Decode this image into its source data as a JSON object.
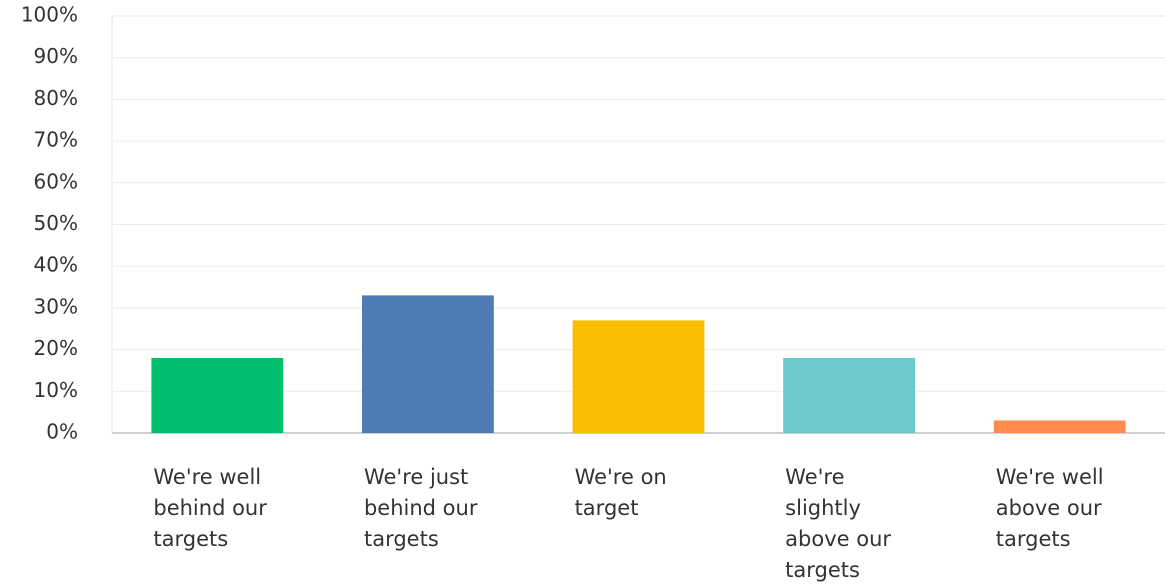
{
  "chart_data": {
    "type": "bar",
    "categories": [
      "We're well behind our targets",
      "We're just behind our targets",
      "We're on target",
      "We're slightly above our targets",
      "We're well above our targets"
    ],
    "values": [
      18,
      33,
      27,
      18,
      3
    ],
    "colors": [
      "#00bf6f",
      "#507cb6",
      "#f9be00",
      "#6bc8cd",
      "#ff8b4f"
    ],
    "ylim": [
      0,
      100
    ],
    "yticks": [
      {
        "value": 0,
        "label": "0%"
      },
      {
        "value": 10,
        "label": "10%"
      },
      {
        "value": 20,
        "label": "20%"
      },
      {
        "value": 30,
        "label": "30%"
      },
      {
        "value": 40,
        "label": "40%"
      },
      {
        "value": 50,
        "label": "50%"
      },
      {
        "value": 60,
        "label": "60%"
      },
      {
        "value": 70,
        "label": "70%"
      },
      {
        "value": 80,
        "label": "80%"
      },
      {
        "value": 90,
        "label": "90%"
      },
      {
        "value": 100,
        "label": "100%"
      }
    ],
    "grid": true
  }
}
